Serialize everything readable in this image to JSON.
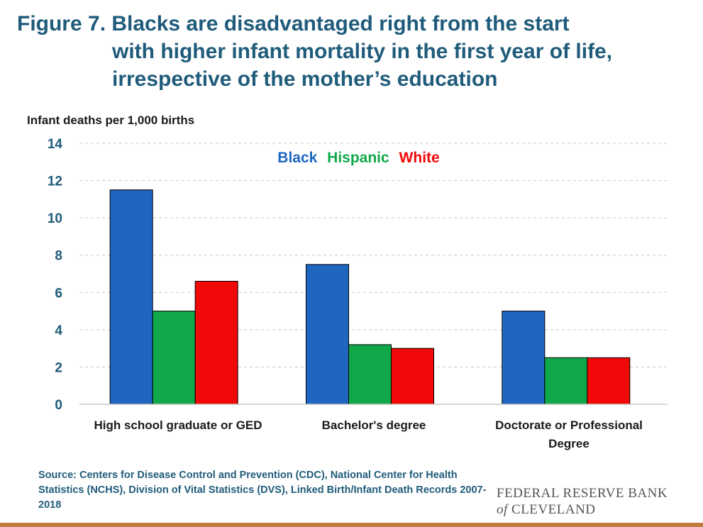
{
  "header": {
    "title_line1": "Figure 7. Blacks are disadvantaged right from the start",
    "title_line2": "with higher infant mortality in the first year of life,",
    "title_line3": "irrespective of the mother’s education"
  },
  "chart_data": {
    "type": "bar",
    "ylabel": "Infant deaths per 1,000 births",
    "xlabel": "",
    "ylim": [
      0,
      14
    ],
    "yticks": [
      "0",
      "2",
      "4",
      "6",
      "8",
      "10",
      "12",
      "14"
    ],
    "grid": "horizontal dashed",
    "legend_position": "top-center",
    "categories": [
      "High school graduate or GED",
      "Bachelor's degree",
      "Doctorate or Professional Degree"
    ],
    "series": [
      {
        "name": "Black",
        "color": "#1f66c1",
        "values": [
          11.5,
          7.5,
          5.0
        ]
      },
      {
        "name": "Hispanic",
        "color": "#10a84a",
        "values": [
          5.0,
          3.2,
          2.5
        ]
      },
      {
        "name": "White",
        "color": "#f10808",
        "values": [
          6.6,
          3.0,
          2.5
        ]
      }
    ]
  },
  "footer": {
    "source": "Source: Centers for Disease Control and Prevention (CDC), National Center for Health Statistics (NCHS), Division of Vital Statistics (DVS), Linked Birth/Infant Death Records 2007-2018",
    "logo_line1": "FEDERAL RESERVE BANK",
    "logo_of": "of",
    "logo_line2": "CLEVELAND"
  }
}
